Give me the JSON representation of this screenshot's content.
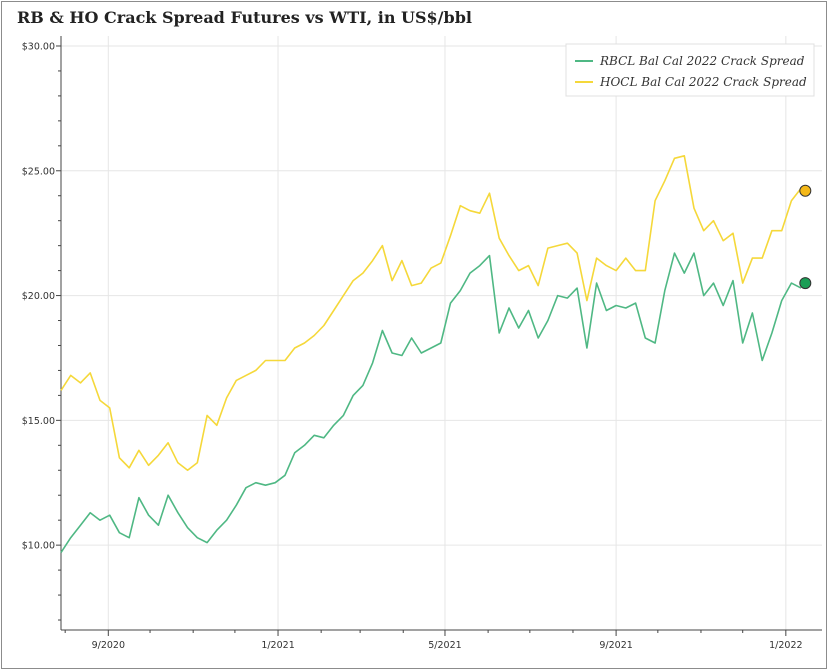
{
  "title": "RB & HO Crack Spread Futures vs WTI, in US$/bbl",
  "chart_data": {
    "type": "line",
    "title": "RB & HO Crack Spread Futures vs WTI, in US$/bbl",
    "xlabel": "",
    "ylabel": "",
    "ylim": [
      6.6,
      30.4
    ],
    "xlim": [
      "2020-07-29",
      "2022-01-27"
    ],
    "yticks": [
      10,
      15,
      20,
      25,
      30
    ],
    "ytick_labels": [
      "$10.00",
      "$15.00",
      "$20.00",
      "$25.00",
      "$30.00"
    ],
    "xticks": [
      "2020-09-01",
      "2021-01-01",
      "2021-05-01",
      "2021-09-01",
      "2022-01-01"
    ],
    "xtick_labels": [
      "9/2020",
      "1/2021",
      "5/2021",
      "9/2021",
      "1/2022"
    ],
    "grid": true,
    "legend_position": "top-right",
    "series": [
      {
        "name": "RBCL Bal Cal 2022 Crack Spread",
        "color": "#4fb884",
        "marker_color": "#1a9e55",
        "x": [
          "2020-07-29",
          "2020-08-05",
          "2020-08-12",
          "2020-08-19",
          "2020-08-26",
          "2020-09-02",
          "2020-09-09",
          "2020-09-16",
          "2020-09-23",
          "2020-09-30",
          "2020-10-07",
          "2020-10-14",
          "2020-10-21",
          "2020-10-28",
          "2020-11-04",
          "2020-11-11",
          "2020-11-18",
          "2020-11-25",
          "2020-12-02",
          "2020-12-09",
          "2020-12-16",
          "2020-12-23",
          "2020-12-30",
          "2021-01-06",
          "2021-01-13",
          "2021-01-20",
          "2021-01-27",
          "2021-02-03",
          "2021-02-10",
          "2021-02-17",
          "2021-02-24",
          "2021-03-03",
          "2021-03-10",
          "2021-03-17",
          "2021-03-24",
          "2021-03-31",
          "2021-04-07",
          "2021-04-14",
          "2021-04-21",
          "2021-04-28",
          "2021-05-05",
          "2021-05-12",
          "2021-05-19",
          "2021-05-26",
          "2021-06-02",
          "2021-06-09",
          "2021-06-16",
          "2021-06-23",
          "2021-06-30",
          "2021-07-07",
          "2021-07-14",
          "2021-07-21",
          "2021-07-28",
          "2021-08-04",
          "2021-08-11",
          "2021-08-18",
          "2021-08-25",
          "2021-09-01",
          "2021-09-08",
          "2021-09-15",
          "2021-09-22",
          "2021-09-29",
          "2021-10-06",
          "2021-10-13",
          "2021-10-20",
          "2021-10-27",
          "2021-11-03",
          "2021-11-10",
          "2021-11-17",
          "2021-11-24",
          "2021-12-01",
          "2021-12-08",
          "2021-12-15",
          "2021-12-22",
          "2021-12-29",
          "2022-01-05",
          "2022-01-12"
        ],
        "y": [
          9.7,
          10.3,
          10.8,
          11.3,
          11.0,
          11.2,
          10.5,
          10.3,
          11.9,
          11.2,
          10.8,
          12.0,
          11.3,
          10.7,
          10.3,
          10.1,
          10.6,
          11.0,
          11.6,
          12.3,
          12.5,
          12.4,
          12.5,
          12.8,
          13.7,
          14.0,
          14.4,
          14.3,
          14.8,
          15.2,
          16.0,
          16.4,
          17.3,
          18.6,
          17.7,
          17.6,
          18.3,
          17.7,
          17.9,
          18.1,
          19.7,
          20.2,
          20.9,
          21.2,
          21.6,
          18.5,
          19.5,
          18.7,
          19.4,
          18.3,
          19.0,
          20.0,
          19.9,
          20.3,
          17.9,
          20.5,
          19.4,
          19.6,
          19.5,
          19.7,
          18.3,
          18.1,
          20.2,
          21.7,
          20.9,
          21.7,
          20.0,
          20.5,
          19.6,
          20.6,
          18.1,
          19.3,
          17.4,
          18.5,
          19.8,
          20.5,
          20.3
        ],
        "end_marker": {
          "x": "2022-01-15",
          "y": 20.5
        }
      },
      {
        "name": "HOCL Bal Cal 2022 Crack Spread",
        "color": "#f5d83a",
        "marker_color": "#f4b818",
        "x": [
          "2020-07-29",
          "2020-08-05",
          "2020-08-12",
          "2020-08-19",
          "2020-08-26",
          "2020-09-02",
          "2020-09-09",
          "2020-09-16",
          "2020-09-23",
          "2020-09-30",
          "2020-10-07",
          "2020-10-14",
          "2020-10-21",
          "2020-10-28",
          "2020-11-04",
          "2020-11-11",
          "2020-11-18",
          "2020-11-25",
          "2020-12-02",
          "2020-12-09",
          "2020-12-16",
          "2020-12-23",
          "2020-12-30",
          "2021-01-06",
          "2021-01-13",
          "2021-01-20",
          "2021-01-27",
          "2021-02-03",
          "2021-02-10",
          "2021-02-17",
          "2021-02-24",
          "2021-03-03",
          "2021-03-10",
          "2021-03-17",
          "2021-03-24",
          "2021-03-31",
          "2021-04-07",
          "2021-04-14",
          "2021-04-21",
          "2021-04-28",
          "2021-05-05",
          "2021-05-12",
          "2021-05-19",
          "2021-05-26",
          "2021-06-02",
          "2021-06-09",
          "2021-06-16",
          "2021-06-23",
          "2021-06-30",
          "2021-07-07",
          "2021-07-14",
          "2021-07-21",
          "2021-07-28",
          "2021-08-04",
          "2021-08-11",
          "2021-08-18",
          "2021-08-25",
          "2021-09-01",
          "2021-09-08",
          "2021-09-15",
          "2021-09-22",
          "2021-09-29",
          "2021-10-06",
          "2021-10-13",
          "2021-10-20",
          "2021-10-27",
          "2021-11-03",
          "2021-11-10",
          "2021-11-17",
          "2021-11-24",
          "2021-12-01",
          "2021-12-08",
          "2021-12-15",
          "2021-12-22",
          "2021-12-29",
          "2022-01-05",
          "2022-01-12"
        ],
        "y": [
          16.2,
          16.8,
          16.5,
          16.9,
          15.8,
          15.5,
          13.5,
          13.1,
          13.8,
          13.2,
          13.6,
          14.1,
          13.3,
          13.0,
          13.3,
          15.2,
          14.8,
          15.9,
          16.6,
          16.8,
          17.0,
          17.4,
          17.4,
          17.4,
          17.9,
          18.1,
          18.4,
          18.8,
          19.4,
          20.0,
          20.6,
          20.9,
          21.4,
          22.0,
          20.6,
          21.4,
          20.4,
          20.5,
          21.1,
          21.3,
          22.4,
          23.6,
          23.4,
          23.3,
          24.1,
          22.3,
          21.6,
          21.0,
          21.2,
          20.4,
          21.9,
          22.0,
          22.1,
          21.7,
          19.8,
          21.5,
          21.2,
          21.0,
          21.5,
          21.0,
          21.0,
          23.8,
          24.6,
          25.5,
          25.6,
          23.5,
          22.6,
          23.0,
          22.2,
          22.5,
          20.5,
          21.5,
          21.5,
          22.6,
          22.6,
          23.8,
          24.3
        ],
        "end_marker": {
          "x": "2022-01-15",
          "y": 24.2
        }
      }
    ]
  }
}
